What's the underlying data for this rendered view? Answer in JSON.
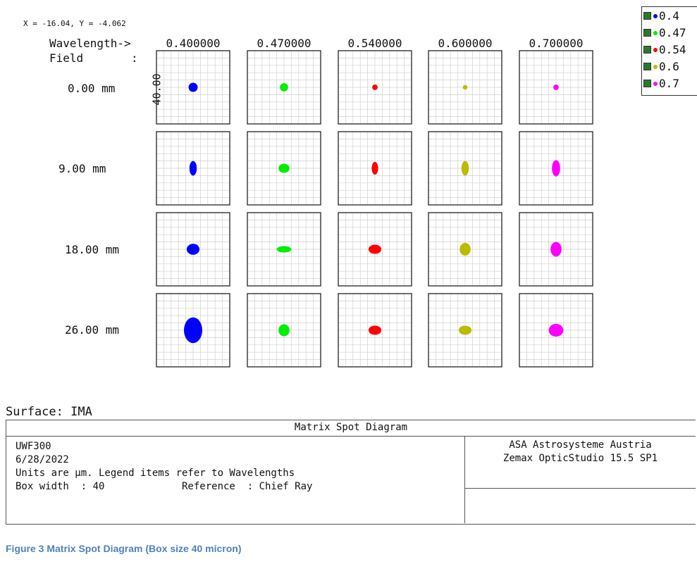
{
  "cursor_readout": "X = -16.04, Y = -4.062",
  "header": {
    "wavelength_label": "Wavelength->",
    "field_label": "Field",
    "field_colon": ":"
  },
  "scale_label": "40.00",
  "legend": {
    "items": [
      {
        "label": "0.4",
        "color": "#0000ff"
      },
      {
        "label": "0.47",
        "color": "#00ee00"
      },
      {
        "label": "0.54",
        "color": "#ff0000"
      },
      {
        "label": "0.6",
        "color": "#bbbb00"
      },
      {
        "label": "0.7",
        "color": "#ff00ff"
      }
    ]
  },
  "chart_data": {
    "type": "spot_diagram_matrix",
    "title": "Matrix Spot Diagram",
    "units": "µm",
    "box_width_um": 40,
    "wavelengths": [
      "0.400000",
      "0.470000",
      "0.540000",
      "0.600000",
      "0.700000"
    ],
    "fields": [
      "0.00 mm",
      "9.00 mm",
      "18.00 mm",
      "26.00 mm"
    ],
    "series_colors": [
      "#0000ff",
      "#00ee00",
      "#ff0000",
      "#bbbb00",
      "#ff00ff"
    ],
    "spot_size_um": [
      [
        [
          5,
          5
        ],
        [
          4.5,
          4.5
        ],
        [
          3,
          3
        ],
        [
          2.5,
          2.5
        ],
        [
          3,
          3
        ]
      ],
      [
        [
          4,
          8
        ],
        [
          6,
          5
        ],
        [
          3.5,
          7
        ],
        [
          4,
          8
        ],
        [
          4.5,
          9
        ]
      ],
      [
        [
          7,
          6
        ],
        [
          8,
          3.5
        ],
        [
          7,
          5
        ],
        [
          6,
          7
        ],
        [
          6,
          8
        ]
      ],
      [
        [
          10,
          14
        ],
        [
          6,
          6.5
        ],
        [
          7,
          5
        ],
        [
          7,
          5
        ],
        [
          8,
          7
        ]
      ]
    ]
  },
  "surface": "Surface: IMA",
  "info": {
    "title": "Matrix Spot Diagram",
    "lines": [
      "UWF300",
      "6/28/2022",
      "Units are µm. Legend items refer to Wavelengths",
      "Box width  : 40             Reference  : Chief Ray"
    ],
    "company": "ASA Astrosysteme Austria",
    "software": "Zemax OpticStudio 15.5 SP1"
  },
  "caption": "Figure 3 Matrix Spot Diagram (Box size 40 micron)"
}
